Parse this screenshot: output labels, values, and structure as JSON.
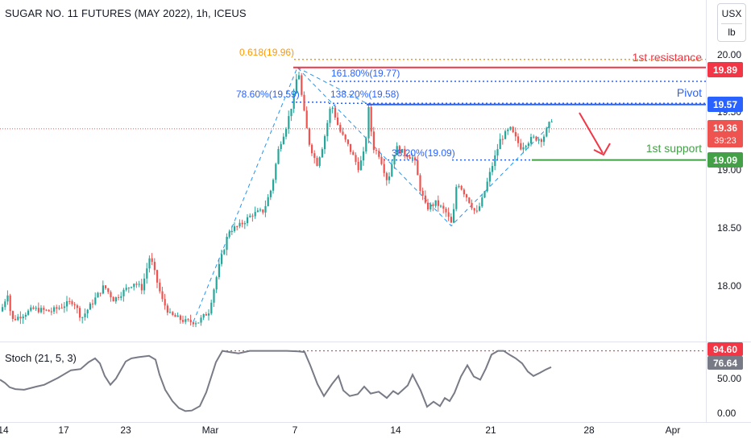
{
  "header": {
    "title": "SUGAR NO. 11 FUTURES (MAY 2022), 1h, ICEUS",
    "currency": "USX",
    "unit": "lb"
  },
  "stoch": {
    "label": "Stoch (21, 5, 3)",
    "axis_labels": [
      "50.00",
      "0.00"
    ],
    "upper_badge": "94.60",
    "value_badge": "76.64"
  },
  "price_axis": {
    "tick_labels": [
      "20.00",
      "19.50",
      "19.00",
      "18.50",
      "18.00"
    ],
    "ticks": [
      20.0,
      19.5,
      19.0,
      18.5,
      18.0
    ]
  },
  "badges": {
    "resistance": "19.89",
    "pivot": "19.57",
    "current": "19.36",
    "countdown": "39:23",
    "support": "19.09"
  },
  "levels": {
    "resistance_label": "1st resistance",
    "pivot_label": "Pivot",
    "support_label": "1st support"
  },
  "fib_labels": {
    "f618": "0.618(19.96)",
    "f1618": "161.80%(19.77)",
    "f786": "78.60%(19.59)",
    "f1382": "138.20%(19.58)",
    "f382": "38.20%(19.09)"
  },
  "x_axis": {
    "labels": [
      "14",
      "17",
      "23",
      "Mar",
      "7",
      "14",
      "21",
      "28",
      "Apr"
    ]
  },
  "colors": {
    "up": "#26a69a",
    "down": "#ef5350",
    "resistance": "#f23645",
    "pivot": "#2962ff",
    "support": "#43a047",
    "fib_orange": "#ff9800",
    "fib_blue": "#2962ff",
    "dashed": "#2196f3",
    "stoch_line": "#787b86",
    "current_badge": "#ef5350",
    "stoch_badge": "#787b86"
  },
  "chart_data": {
    "type": "candlestick",
    "ylim": [
      17.57,
      20.2
    ],
    "price_path": [
      [
        0,
        17.78
      ],
      [
        9,
        17.95
      ],
      [
        13,
        17.7
      ],
      [
        40,
        17.8
      ],
      [
        62,
        17.78
      ],
      [
        90,
        17.87
      ],
      [
        100,
        17.72
      ],
      [
        128,
        18.0
      ],
      [
        140,
        17.88
      ],
      [
        165,
        18.03
      ],
      [
        175,
        17.98
      ],
      [
        185,
        18.26
      ],
      [
        200,
        17.88
      ],
      [
        210,
        17.75
      ],
      [
        230,
        17.69
      ],
      [
        245,
        17.69
      ],
      [
        258,
        17.78
      ],
      [
        270,
        18.15
      ],
      [
        283,
        18.48
      ],
      [
        296,
        18.52
      ],
      [
        312,
        18.62
      ],
      [
        326,
        18.65
      ],
      [
        336,
        18.85
      ],
      [
        345,
        19.2
      ],
      [
        355,
        19.4
      ],
      [
        364,
        19.65
      ],
      [
        369,
        19.89
      ],
      [
        374,
        19.6
      ],
      [
        382,
        19.25
      ],
      [
        392,
        19.05
      ],
      [
        400,
        19.23
      ],
      [
        410,
        19.58
      ],
      [
        420,
        19.35
      ],
      [
        432,
        19.2
      ],
      [
        444,
        19.02
      ],
      [
        452,
        19.18
      ],
      [
        456,
        19.55
      ],
      [
        462,
        19.2
      ],
      [
        470,
        19.13
      ],
      [
        480,
        18.9
      ],
      [
        490,
        19.2
      ],
      [
        500,
        19.15
      ],
      [
        513,
        19.1
      ],
      [
        520,
        18.85
      ],
      [
        528,
        18.67
      ],
      [
        540,
        18.72
      ],
      [
        552,
        18.64
      ],
      [
        560,
        18.52
      ],
      [
        566,
        18.91
      ],
      [
        580,
        18.75
      ],
      [
        590,
        18.62
      ],
      [
        597,
        18.74
      ],
      [
        608,
        19.0
      ],
      [
        620,
        19.27
      ],
      [
        632,
        19.36
      ],
      [
        645,
        19.2
      ],
      [
        660,
        19.28
      ],
      [
        672,
        19.27
      ],
      [
        684,
        19.45
      ]
    ],
    "stoch": [
      [
        0,
        52
      ],
      [
        6,
        47
      ],
      [
        12,
        40
      ],
      [
        19,
        37
      ],
      [
        30,
        36
      ],
      [
        45,
        41
      ],
      [
        55,
        44
      ],
      [
        72,
        55
      ],
      [
        88,
        67
      ],
      [
        100,
        69
      ],
      [
        110,
        80
      ],
      [
        118,
        86
      ],
      [
        124,
        78
      ],
      [
        130,
        58
      ],
      [
        137,
        44
      ],
      [
        144,
        54
      ],
      [
        156,
        81
      ],
      [
        163,
        86
      ],
      [
        172,
        88
      ],
      [
        185,
        90
      ],
      [
        193,
        84
      ],
      [
        198,
        60
      ],
      [
        205,
        36
      ],
      [
        214,
        18
      ],
      [
        222,
        7
      ],
      [
        230,
        2
      ],
      [
        238,
        3
      ],
      [
        248,
        10
      ],
      [
        256,
        32
      ],
      [
        268,
        80
      ],
      [
        276,
        98
      ],
      [
        285,
        96
      ],
      [
        296,
        94
      ],
      [
        310,
        98
      ],
      [
        330,
        98
      ],
      [
        356,
        98
      ],
      [
        370,
        97
      ],
      [
        378,
        96
      ],
      [
        385,
        75
      ],
      [
        394,
        45
      ],
      [
        402,
        26
      ],
      [
        412,
        45
      ],
      [
        420,
        58
      ],
      [
        426,
        35
      ],
      [
        434,
        26
      ],
      [
        444,
        29
      ],
      [
        452,
        41
      ],
      [
        460,
        30
      ],
      [
        470,
        33
      ],
      [
        480,
        23
      ],
      [
        488,
        34
      ],
      [
        494,
        29
      ],
      [
        506,
        43
      ],
      [
        512,
        60
      ],
      [
        522,
        35
      ],
      [
        530,
        9
      ],
      [
        538,
        17
      ],
      [
        546,
        10
      ],
      [
        552,
        23
      ],
      [
        558,
        18
      ],
      [
        564,
        31
      ],
      [
        572,
        57
      ],
      [
        580,
        75
      ],
      [
        588,
        57
      ],
      [
        596,
        52
      ],
      [
        603,
        70
      ],
      [
        610,
        92
      ],
      [
        618,
        98
      ],
      [
        625,
        98
      ],
      [
        632,
        92
      ],
      [
        640,
        86
      ],
      [
        648,
        78
      ],
      [
        655,
        65
      ],
      [
        662,
        58
      ],
      [
        670,
        63
      ],
      [
        677,
        68
      ],
      [
        684,
        72
      ]
    ],
    "stoch_ylim": [
      0,
      100
    ]
  }
}
